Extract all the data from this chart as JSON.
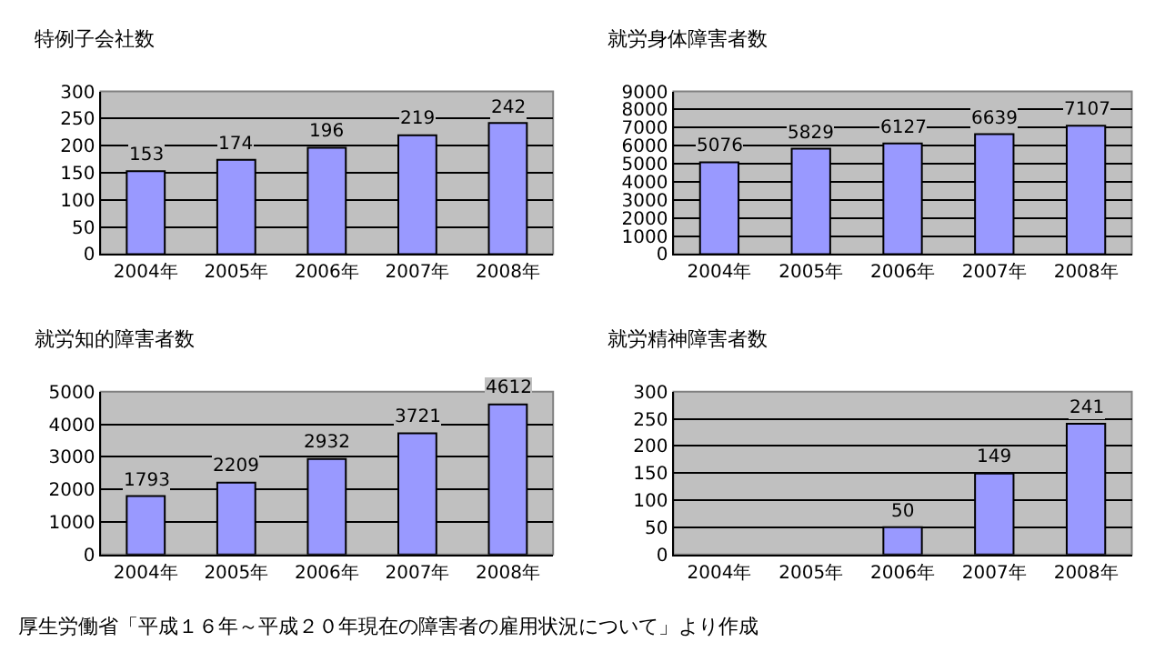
{
  "chart_data": [
    {
      "type": "bar",
      "title": "特例子会社数",
      "categories": [
        "2004年",
        "2005年",
        "2006年",
        "2007年",
        "2008年"
      ],
      "values": [
        153,
        174,
        196,
        219,
        242
      ],
      "color": "#9999ff",
      "ylim": [
        0,
        300
      ],
      "yticks": [
        0,
        50,
        100,
        150,
        200,
        250,
        300
      ],
      "grid": "y",
      "data_labels": true
    },
    {
      "type": "bar",
      "title": "就労身体障害者数",
      "categories": [
        "2004年",
        "2005年",
        "2006年",
        "2007年",
        "2008年"
      ],
      "values": [
        5076,
        5829,
        6127,
        6639,
        7107
      ],
      "color": "#9999ff",
      "ylim": [
        0,
        9000
      ],
      "yticks": [
        0,
        1000,
        2000,
        3000,
        4000,
        5000,
        6000,
        7000,
        8000,
        9000
      ],
      "grid": "y",
      "data_labels": true
    },
    {
      "type": "bar",
      "title": "就労知的障害者数",
      "categories": [
        "2004年",
        "2005年",
        "2006年",
        "2007年",
        "2008年"
      ],
      "values": [
        1793,
        2209,
        2932,
        3721,
        4612
      ],
      "color": "#9999ff",
      "ylim": [
        0,
        5000
      ],
      "yticks": [
        0,
        1000,
        2000,
        3000,
        4000,
        5000
      ],
      "grid": "y",
      "data_labels": true
    },
    {
      "type": "bar",
      "title": "就労精神障害者数",
      "categories": [
        "2004年",
        "2005年",
        "2006年",
        "2007年",
        "2008年"
      ],
      "values": [
        null,
        null,
        50,
        149,
        241
      ],
      "color": "#9999ff",
      "ylim": [
        0,
        300
      ],
      "yticks": [
        0,
        50,
        100,
        150,
        200,
        250,
        300
      ],
      "grid": "y",
      "data_labels": true,
      "annotations": [
        "厚生労働省「平成１６年～平成２０年現在の障害者の雇用状況について」より作成"
      ]
    }
  ]
}
